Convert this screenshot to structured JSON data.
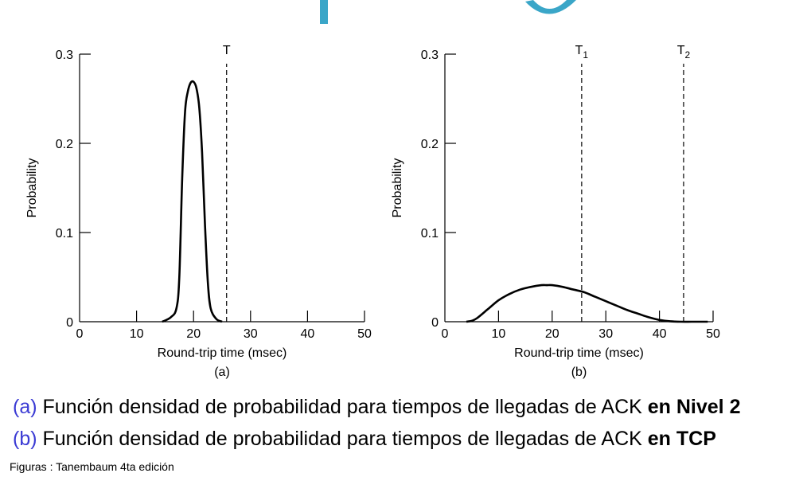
{
  "chart_data": [
    {
      "type": "line",
      "panel_label": "(a)",
      "xlabel": "Round-trip time (msec)",
      "ylabel": "Probability",
      "xlim": [
        0,
        50
      ],
      "ylim": [
        0,
        0.3
      ],
      "x_ticks": [
        "0",
        "10",
        "20",
        "30",
        "40",
        "50"
      ],
      "y_ticks": [
        "0",
        "0.1",
        "0.2",
        "0.3"
      ],
      "grid": false,
      "series": [
        {
          "x": [
            14.5,
            16,
            17,
            17.5,
            18,
            18.5,
            19,
            19.5,
            20,
            20.5,
            21,
            21.5,
            22,
            22.5,
            23,
            24,
            25
          ],
          "y": [
            0,
            0.005,
            0.015,
            0.05,
            0.16,
            0.235,
            0.258,
            0.268,
            0.269,
            0.262,
            0.24,
            0.19,
            0.11,
            0.045,
            0.015,
            0.003,
            0
          ]
        }
      ],
      "markers": [
        {
          "label": "T",
          "sub": "",
          "x": 25.8
        }
      ]
    },
    {
      "type": "line",
      "panel_label": "(b)",
      "xlabel": "Round-trip time (msec)",
      "ylabel": "Probability",
      "xlim": [
        0,
        50
      ],
      "ylim": [
        0,
        0.3
      ],
      "x_ticks": [
        "0",
        "10",
        "20",
        "30",
        "40",
        "50"
      ],
      "y_ticks": [
        "0",
        "0.1",
        "0.2",
        "0.3"
      ],
      "grid": false,
      "series": [
        {
          "x": [
            4,
            5,
            6,
            8,
            10,
            12,
            14,
            16,
            18,
            19,
            20,
            22,
            24,
            26,
            28,
            30,
            32,
            34,
            36,
            38,
            40,
            42,
            44,
            46,
            48,
            49
          ],
          "y": [
            0,
            0.001,
            0.004,
            0.014,
            0.024,
            0.031,
            0.036,
            0.039,
            0.041,
            0.041,
            0.041,
            0.039,
            0.036,
            0.033,
            0.028,
            0.023,
            0.018,
            0.013,
            0.009,
            0.005,
            0.002,
            0.0005,
            0,
            0,
            0,
            0
          ]
        }
      ],
      "markers": [
        {
          "label": "T",
          "sub": "1",
          "x": 25.5
        },
        {
          "label": "T",
          "sub": "2",
          "x": 44.5
        }
      ]
    }
  ],
  "captions": {
    "a": {
      "tag": "(a)",
      "text": " Función densidad de probabilidad para tiempos de llegadas de ACK ",
      "bold": "en Nivel 2"
    },
    "b": {
      "tag": "(b)",
      "text": " Función densidad de probabilidad para tiempos de llegadas de ACK ",
      "bold": "en TCP"
    }
  },
  "credit": "Figuras : Tanembaum 4ta edición",
  "colors": {
    "header": "#3aa6c8",
    "caption_tag": "#3b3bd4",
    "line": "#000000"
  }
}
